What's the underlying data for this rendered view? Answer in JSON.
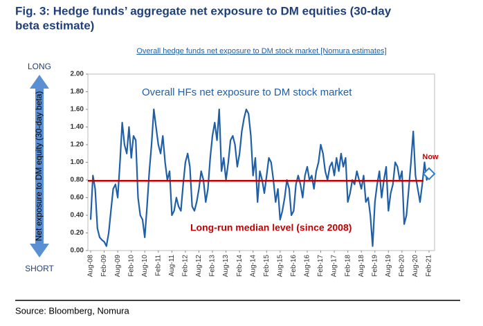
{
  "chart_data": {
    "type": "line",
    "title": "Fig. 3: Hedge funds’ aggregate net exposure to DM equities (30-day",
    "title_line2": "beta estimate)",
    "subtitle": "Overall hedge funds net exposure to DM stock market [Nomura estimates]",
    "y_label": "Net exposure to DM equity (30-day beta)",
    "long_label": "LONG",
    "short_label": "SHORT",
    "source": "Source: Bloomberg, Nomura",
    "now_label": "Now",
    "ylim": [
      0,
      2
    ],
    "yticks": [
      {
        "value": 0,
        "label": "0.00"
      },
      {
        "value": 0.2,
        "label": "0.20"
      },
      {
        "value": 0.4,
        "label": "0.40"
      },
      {
        "value": 0.6,
        "label": "0.60"
      },
      {
        "value": 0.8,
        "label": "0.80"
      },
      {
        "value": 1,
        "label": "1.00"
      },
      {
        "value": 1.2,
        "label": "1.20"
      },
      {
        "value": 1.4,
        "label": "1.40"
      },
      {
        "value": 1.6,
        "label": "1.60"
      },
      {
        "value": 1.8,
        "label": "1.80"
      },
      {
        "value": 2,
        "label": "2.00"
      }
    ],
    "median": {
      "value": 0.79,
      "label": "Long-run median level (since 2008)",
      "color": "#c00000"
    },
    "categories": [
      "Aug-08",
      null,
      null,
      null,
      null,
      null,
      "Feb-09",
      null,
      null,
      null,
      null,
      null,
      "Aug-09",
      null,
      null,
      null,
      null,
      null,
      "Feb-10",
      null,
      null,
      null,
      null,
      null,
      "Aug-10",
      null,
      null,
      null,
      null,
      null,
      "Feb-11",
      null,
      null,
      null,
      null,
      null,
      "Aug-11",
      null,
      null,
      null,
      null,
      null,
      "Feb-12",
      null,
      null,
      null,
      null,
      null,
      "Aug-12",
      null,
      null,
      null,
      null,
      null,
      "Feb-13",
      null,
      null,
      null,
      null,
      null,
      "Aug-13",
      null,
      null,
      null,
      null,
      null,
      "Feb-14",
      null,
      null,
      null,
      null,
      null,
      "Aug-14",
      null,
      null,
      null,
      null,
      null,
      "Feb-15",
      null,
      null,
      null,
      null,
      null,
      "Aug-15",
      null,
      null,
      null,
      null,
      null,
      "Feb-16",
      null,
      null,
      null,
      null,
      null,
      "Aug-16",
      null,
      null,
      null,
      null,
      null,
      "Feb-17",
      null,
      null,
      null,
      null,
      null,
      "Aug-17",
      null,
      null,
      null,
      null,
      null,
      "Feb-18",
      null,
      null,
      null,
      null,
      null,
      "Aug-18",
      null,
      null,
      null,
      null,
      null,
      "Feb-19",
      null,
      null,
      null,
      null,
      null,
      "Aug-19",
      null,
      null,
      null,
      null,
      null,
      "Feb-20",
      null,
      null,
      null,
      null,
      null,
      "Aug-20",
      null,
      null,
      null,
      null,
      null,
      "Feb-21"
    ],
    "series": [
      {
        "name": "Overall HFs net exposure to DM stock market",
        "color": "#1f5fa8",
        "values": [
          0.35,
          0.85,
          0.7,
          0.25,
          0.15,
          0.12,
          0.1,
          0.05,
          0.2,
          0.45,
          0.7,
          0.75,
          0.6,
          1.0,
          1.45,
          1.2,
          1.1,
          1.4,
          1.05,
          1.3,
          1.25,
          0.6,
          0.4,
          0.35,
          0.15,
          0.5,
          0.9,
          1.2,
          1.6,
          1.4,
          1.2,
          1.1,
          1.3,
          1.0,
          0.8,
          0.9,
          0.4,
          0.45,
          0.6,
          0.5,
          0.45,
          0.75,
          1.0,
          1.1,
          0.95,
          0.5,
          0.45,
          0.55,
          0.7,
          0.9,
          0.8,
          0.55,
          0.7,
          1.05,
          1.3,
          1.45,
          1.25,
          1.6,
          0.9,
          1.05,
          0.8,
          1.0,
          1.25,
          1.3,
          1.2,
          0.95,
          1.1,
          1.35,
          1.5,
          1.6,
          1.55,
          1.3,
          0.85,
          1.05,
          0.55,
          0.9,
          0.8,
          0.65,
          0.85,
          1.05,
          1.0,
          0.8,
          0.55,
          0.7,
          0.35,
          0.45,
          0.6,
          0.8,
          0.7,
          0.4,
          0.45,
          0.75,
          0.85,
          0.75,
          0.6,
          0.85,
          0.95,
          0.8,
          0.85,
          0.7,
          0.9,
          1.0,
          1.2,
          1.1,
          0.9,
          0.8,
          0.95,
          1.0,
          0.85,
          1.05,
          0.9,
          1.1,
          0.95,
          1.05,
          0.55,
          0.65,
          0.8,
          0.75,
          0.9,
          0.8,
          0.7,
          0.85,
          0.55,
          0.6,
          0.4,
          0.05,
          0.55,
          0.75,
          0.9,
          0.6,
          0.8,
          0.95,
          0.45,
          0.65,
          0.75,
          1.0,
          0.95,
          0.8,
          0.9,
          0.3,
          0.4,
          0.7,
          1.0,
          1.35,
          0.85,
          0.7,
          0.55,
          0.75,
          1.0,
          0.8,
          0.87
        ]
      }
    ]
  }
}
